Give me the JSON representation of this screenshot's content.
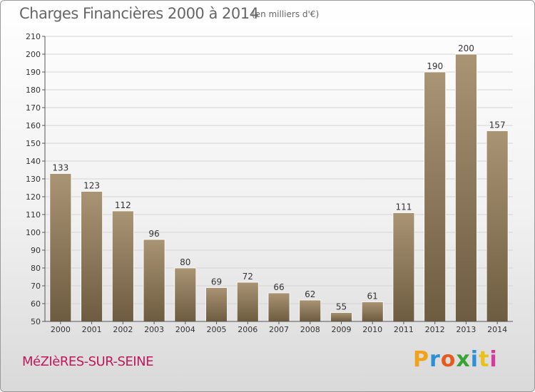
{
  "header": {
    "title": "Charges Financières 2000 à 2014",
    "subtitle": "(en milliers d'€)"
  },
  "footer": {
    "town": "MéZIèRES-SUR-SEINE",
    "logo": {
      "letters": [
        "P",
        "r",
        "o",
        "x",
        "i",
        "t",
        "i"
      ],
      "colors": [
        "#f0a21b",
        "#2d8fd6",
        "#e65a1e",
        "#3aa335",
        "#2d8fd6",
        "#e8c21b",
        "#d63a9f"
      ]
    }
  },
  "chart_data": {
    "type": "bar",
    "title": "Charges Financières 2000 à 2014",
    "categories": [
      "2000",
      "2001",
      "2002",
      "2003",
      "2004",
      "2005",
      "2006",
      "2007",
      "2008",
      "2009",
      "2010",
      "2011",
      "2012",
      "2013",
      "2014"
    ],
    "values": [
      133,
      123,
      112,
      96,
      80,
      69,
      72,
      66,
      62,
      55,
      61,
      111,
      190,
      200,
      157
    ],
    "ylim": [
      50,
      210
    ],
    "yticks": [
      50,
      60,
      70,
      80,
      90,
      100,
      110,
      120,
      130,
      140,
      150,
      160,
      170,
      180,
      190,
      200,
      210
    ],
    "xlabel": "",
    "ylabel": "",
    "grid": true,
    "bar_color": "#8b7758"
  }
}
